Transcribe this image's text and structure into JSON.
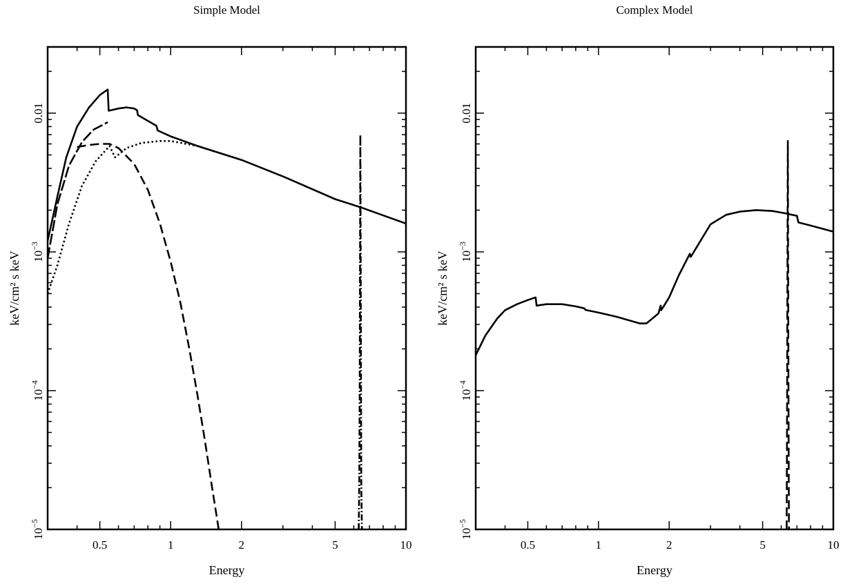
{
  "chart_data": [
    {
      "type": "line",
      "title": "Simple Model",
      "xlabel": "Energy",
      "ylabel": "keV/cm² s keV",
      "xscale": "log",
      "yscale": "log",
      "xlim": [
        0.3,
        10
      ],
      "ylim": [
        1e-05,
        0.03
      ],
      "xticks": [
        {
          "value": 0.5,
          "label": "0.5"
        },
        {
          "value": 1,
          "label": "1"
        },
        {
          "value": 2,
          "label": "2"
        },
        {
          "value": 5,
          "label": "5"
        },
        {
          "value": 10,
          "label": "10"
        }
      ],
      "yticks": [
        {
          "value": 1e-05,
          "base": "10",
          "exp": "−5"
        },
        {
          "value": 0.0001,
          "base": "10",
          "exp": "−4"
        },
        {
          "value": 0.001,
          "base": "10",
          "exp": "−3"
        },
        {
          "value": 0.01,
          "label": "0.01"
        }
      ],
      "series": [
        {
          "style": "solid",
          "x": [
            0.3,
            0.33,
            0.36,
            0.4,
            0.45,
            0.5,
            0.54,
            0.545,
            0.6,
            0.65,
            0.7,
            0.72,
            0.725,
            0.8,
            0.87,
            0.88,
            1.0,
            1.3,
            2,
            3,
            5,
            6.4,
            10
          ],
          "y": [
            0.0012,
            0.0025,
            0.0048,
            0.008,
            0.011,
            0.0135,
            0.0148,
            0.0104,
            0.0108,
            0.011,
            0.0108,
            0.0105,
            0.0097,
            0.0088,
            0.0081,
            0.0075,
            0.0068,
            0.0058,
            0.0046,
            0.0035,
            0.0024,
            0.0021,
            0.0016
          ]
        },
        {
          "style": "long-dash",
          "x": [
            0.3,
            0.33,
            0.37,
            0.42,
            0.47,
            0.54
          ],
          "y": [
            0.0009,
            0.0022,
            0.0042,
            0.0062,
            0.0076,
            0.0086
          ]
        },
        {
          "style": "dashed",
          "x": [
            0.4,
            0.45,
            0.5,
            0.55,
            0.6,
            0.7,
            0.8,
            0.9,
            1.0,
            1.1,
            1.2,
            1.3,
            1.4,
            1.5,
            1.6
          ],
          "y": [
            0.0057,
            0.0059,
            0.006,
            0.006,
            0.0056,
            0.0043,
            0.0028,
            0.0016,
            0.00085,
            0.00043,
            0.0002,
            9.3e-05,
            4.3e-05,
            2e-05,
            1e-05
          ]
        },
        {
          "style": "dotted",
          "x": [
            0.3,
            0.33,
            0.37,
            0.42,
            0.48,
            0.55,
            0.58,
            0.65,
            0.75,
            0.9,
            1.0,
            1.3,
            2
          ],
          "y": [
            0.0005,
            0.0008,
            0.0016,
            0.003,
            0.0045,
            0.0058,
            0.0048,
            0.0056,
            0.0061,
            0.0063,
            0.0063,
            0.0058,
            0.0046
          ]
        },
        {
          "style": "dash-dot",
          "x": [
            6.3,
            6.33,
            6.36,
            6.38,
            6.4,
            6.42,
            6.44,
            6.46,
            6.5
          ],
          "y": [
            1e-05,
            2e-05,
            0.0001,
            0.001,
            0.007,
            0.001,
            0.0001,
            2e-05,
            1e-05
          ]
        }
      ]
    },
    {
      "type": "line",
      "title": "Complex Model",
      "xlabel": "Energy",
      "ylabel": "keV/cm² s keV",
      "xscale": "log",
      "yscale": "log",
      "xlim": [
        0.3,
        10
      ],
      "ylim": [
        1e-05,
        0.03
      ],
      "xticks": [
        {
          "value": 0.5,
          "label": "0.5"
        },
        {
          "value": 1,
          "label": "1"
        },
        {
          "value": 2,
          "label": "2"
        },
        {
          "value": 5,
          "label": "5"
        },
        {
          "value": 10,
          "label": "10"
        }
      ],
      "yticks": [
        {
          "value": 1e-05,
          "base": "10",
          "exp": "−5"
        },
        {
          "value": 0.0001,
          "base": "10",
          "exp": "−4"
        },
        {
          "value": 0.001,
          "base": "10",
          "exp": "−3"
        },
        {
          "value": 0.01,
          "label": "0.01"
        }
      ],
      "series": [
        {
          "style": "solid",
          "x": [
            0.3,
            0.33,
            0.37,
            0.4,
            0.45,
            0.5,
            0.54,
            0.545,
            0.6,
            0.7,
            0.8,
            0.87,
            0.88,
            1.0,
            1.2,
            1.5,
            1.6,
            1.8,
            1.84,
            1.85,
            2.0,
            2.2,
            2.45,
            2.47,
            2.5,
            3.0,
            3.5,
            4.0,
            4.7,
            5.5,
            6.2,
            7.0,
            7.1,
            8.0,
            10
          ],
          "y": [
            0.00018,
            0.00025,
            0.00033,
            0.00038,
            0.00042,
            0.00045,
            0.00047,
            0.00041,
            0.00042,
            0.00042,
            0.000405,
            0.000392,
            0.000382,
            0.000365,
            0.00034,
            0.000305,
            0.000305,
            0.00036,
            0.00041,
            0.00038,
            0.00047,
            0.00068,
            0.00097,
            0.00092,
            0.00095,
            0.00158,
            0.00185,
            0.00195,
            0.002,
            0.00197,
            0.0019,
            0.00182,
            0.00163,
            0.00155,
            0.0014
          ]
        },
        {
          "style": "dashed",
          "x": [
            6.33,
            6.36,
            6.38,
            6.4,
            6.42,
            6.44,
            6.47
          ],
          "y": [
            1e-05,
            0.0001,
            0.001,
            0.0063,
            0.001,
            0.0001,
            1e-05
          ]
        }
      ]
    }
  ]
}
